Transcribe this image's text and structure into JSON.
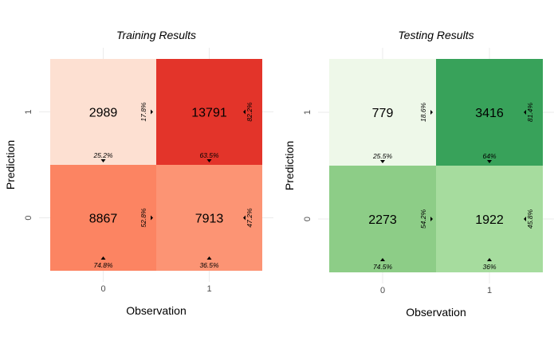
{
  "chart_data": [
    {
      "type": "heatmap",
      "title": "Training Results",
      "xlabel": "Observation",
      "ylabel": "Prediction",
      "x_categories": [
        "0",
        "1"
      ],
      "y_categories": [
        "0",
        "1"
      ],
      "cells": [
        {
          "observation": "0",
          "prediction": "1",
          "count": "2989",
          "col_pct": "25.2%",
          "row_pct": "17.8%",
          "color": "#fde0d2"
        },
        {
          "observation": "1",
          "prediction": "1",
          "count": "13791",
          "col_pct": "63.5%",
          "row_pct": "82.2%",
          "color": "#e3342a"
        },
        {
          "observation": "0",
          "prediction": "0",
          "count": "8867",
          "col_pct": "74.8%",
          "row_pct": "52.8%",
          "color": "#fc8462"
        },
        {
          "observation": "1",
          "prediction": "0",
          "count": "7913",
          "col_pct": "36.5%",
          "row_pct": "47.2%",
          "color": "#fc9474"
        }
      ]
    },
    {
      "type": "heatmap",
      "title": "Testing Results",
      "xlabel": "Observation",
      "ylabel": "Prediction",
      "x_categories": [
        "0",
        "1"
      ],
      "y_categories": [
        "0",
        "1"
      ],
      "cells": [
        {
          "observation": "0",
          "prediction": "1",
          "count": "779",
          "col_pct": "25.5%",
          "row_pct": "18.6%",
          "color": "#eef8e9"
        },
        {
          "observation": "1",
          "prediction": "1",
          "count": "3416",
          "col_pct": "64%",
          "row_pct": "81.4%",
          "color": "#38a25a"
        },
        {
          "observation": "0",
          "prediction": "0",
          "count": "2273",
          "col_pct": "74.5%",
          "row_pct": "54.2%",
          "color": "#8dcd87"
        },
        {
          "observation": "1",
          "prediction": "0",
          "count": "1922",
          "col_pct": "36%",
          "row_pct": "45.8%",
          "color": "#a6dc9e"
        }
      ]
    }
  ]
}
